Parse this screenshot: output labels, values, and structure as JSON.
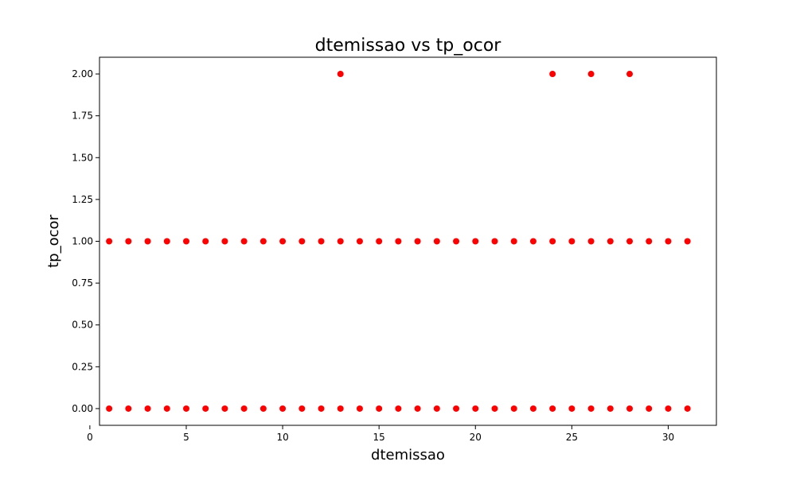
{
  "chart_data": {
    "type": "scatter",
    "title": "dtemissao vs tp_ocor",
    "xlabel": "dtemissao",
    "ylabel": "tp_ocor",
    "xlim": [
      0.5,
      32.5
    ],
    "ylim": [
      -0.1,
      2.1
    ],
    "xticks": [
      0,
      5,
      10,
      15,
      20,
      25,
      30
    ],
    "xtick_labels": [
      "0",
      "5",
      "10",
      "15",
      "20",
      "25",
      "30"
    ],
    "yticks": [
      0,
      0.25,
      0.5,
      0.75,
      1.0,
      1.25,
      1.5,
      1.75,
      2.0
    ],
    "ytick_labels": [
      "0.00",
      "0.25",
      "0.50",
      "0.75",
      "1.00",
      "1.25",
      "1.50",
      "1.75",
      "2.00"
    ],
    "grid": false,
    "marker_color": "#ff0000",
    "points": [
      [
        1,
        0
      ],
      [
        2,
        0
      ],
      [
        3,
        0
      ],
      [
        4,
        0
      ],
      [
        5,
        0
      ],
      [
        6,
        0
      ],
      [
        7,
        0
      ],
      [
        8,
        0
      ],
      [
        9,
        0
      ],
      [
        10,
        0
      ],
      [
        11,
        0
      ],
      [
        12,
        0
      ],
      [
        13,
        0
      ],
      [
        14,
        0
      ],
      [
        15,
        0
      ],
      [
        16,
        0
      ],
      [
        17,
        0
      ],
      [
        18,
        0
      ],
      [
        19,
        0
      ],
      [
        20,
        0
      ],
      [
        21,
        0
      ],
      [
        22,
        0
      ],
      [
        23,
        0
      ],
      [
        24,
        0
      ],
      [
        25,
        0
      ],
      [
        26,
        0
      ],
      [
        27,
        0
      ],
      [
        28,
        0
      ],
      [
        29,
        0
      ],
      [
        30,
        0
      ],
      [
        31,
        0
      ],
      [
        1,
        1
      ],
      [
        2,
        1
      ],
      [
        3,
        1
      ],
      [
        4,
        1
      ],
      [
        5,
        1
      ],
      [
        6,
        1
      ],
      [
        7,
        1
      ],
      [
        8,
        1
      ],
      [
        9,
        1
      ],
      [
        10,
        1
      ],
      [
        11,
        1
      ],
      [
        12,
        1
      ],
      [
        13,
        1
      ],
      [
        14,
        1
      ],
      [
        15,
        1
      ],
      [
        16,
        1
      ],
      [
        17,
        1
      ],
      [
        18,
        1
      ],
      [
        19,
        1
      ],
      [
        20,
        1
      ],
      [
        21,
        1
      ],
      [
        22,
        1
      ],
      [
        23,
        1
      ],
      [
        24,
        1
      ],
      [
        25,
        1
      ],
      [
        26,
        1
      ],
      [
        27,
        1
      ],
      [
        28,
        1
      ],
      [
        29,
        1
      ],
      [
        30,
        1
      ],
      [
        31,
        1
      ],
      [
        13,
        2
      ],
      [
        24,
        2
      ],
      [
        26,
        2
      ],
      [
        28,
        2
      ]
    ]
  }
}
